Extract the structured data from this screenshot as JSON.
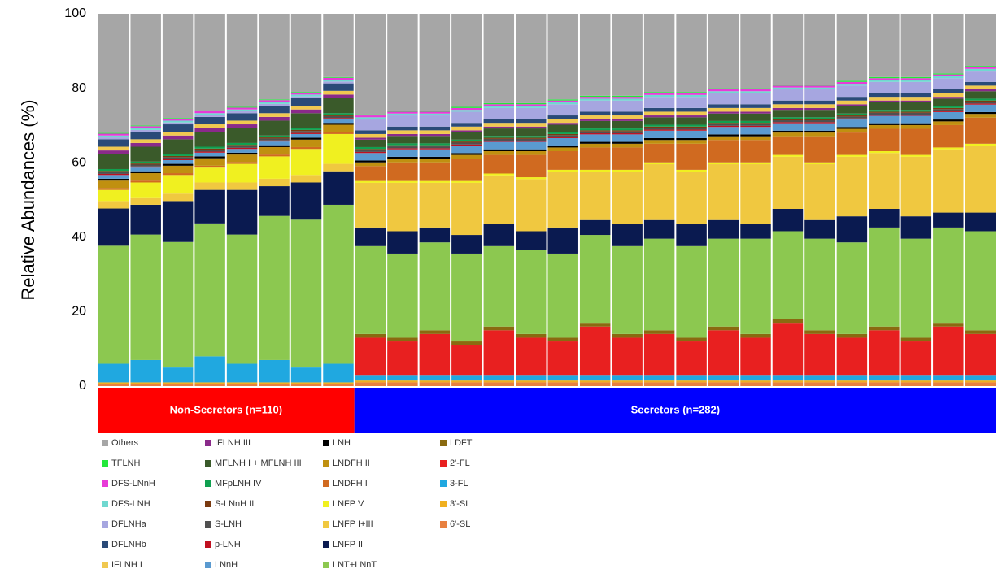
{
  "chart_data": {
    "type": "stacked_bar",
    "ylabel": "Relative Abundances (%)",
    "ylim": [
      0,
      100
    ],
    "yticks": [
      0,
      20,
      40,
      60,
      80,
      100
    ],
    "groups": [
      {
        "label": "Non-Secretors (n=110)",
        "color": "#ff0000",
        "categories": [
          null,
          null,
          null,
          null,
          null,
          null,
          null,
          null
        ]
      },
      {
        "label": "Secretors (n=282)",
        "color": "#0000ff",
        "categories": [
          null,
          null,
          null,
          null,
          null,
          null,
          null,
          null,
          null,
          null,
          null,
          null,
          null,
          null,
          null,
          null,
          null,
          null,
          null,
          null
        ]
      }
    ],
    "series": [
      {
        "name": "Others",
        "color": "#a6a6a6",
        "values": [
          32,
          30,
          28,
          26,
          25,
          23,
          21,
          17,
          27,
          26,
          26,
          25,
          24,
          24,
          23,
          22,
          22,
          21,
          21,
          20,
          20,
          19,
          19,
          18,
          17,
          17,
          16,
          14
        ]
      },
      {
        "name": "TFLNH",
        "color": "#22e83a",
        "values": [
          0.2,
          0.2,
          0.2,
          0.2,
          0.2,
          0.2,
          0.2,
          0.2,
          0.3,
          0.3,
          0.3,
          0.3,
          0.3,
          0.3,
          0.3,
          0.3,
          0.3,
          0.3,
          0.3,
          0.3,
          0.3,
          0.3,
          0.3,
          0.3,
          0.3,
          0.3,
          0.3,
          0.3
        ]
      },
      {
        "name": "DFS-LNnH",
        "color": "#e83ad8",
        "values": [
          0.5,
          0.5,
          0.5,
          0.5,
          0.5,
          0.5,
          0.5,
          0.5,
          0.5,
          0.5,
          0.5,
          0.5,
          0.5,
          0.5,
          0.5,
          0.5,
          0.5,
          0.5,
          0.5,
          0.5,
          0.5,
          0.5,
          0.5,
          0.5,
          0.5,
          0.5,
          0.5,
          0.5
        ]
      },
      {
        "name": "DFS-LNH",
        "color": "#70d8d0",
        "values": [
          0.5,
          0.5,
          0.5,
          0.5,
          0.5,
          0.5,
          0.5,
          0.5,
          0.5,
          0.5,
          0.5,
          0.5,
          0.5,
          0.5,
          0.5,
          0.5,
          0.5,
          0.5,
          0.5,
          0.5,
          0.5,
          0.5,
          0.5,
          0.5,
          0.5,
          0.5,
          0.5,
          0.5
        ]
      },
      {
        "name": "DFLNHa",
        "color": "#a6a6e0",
        "values": [
          0.5,
          0.5,
          0.5,
          0.5,
          0.5,
          0.5,
          0.5,
          0.5,
          3,
          3,
          3,
          3,
          3,
          3,
          3,
          3,
          3,
          3,
          3,
          3,
          3,
          3,
          3,
          3,
          3,
          3,
          3,
          3
        ]
      },
      {
        "name": "DFLNHb",
        "color": "#2a4a78",
        "values": [
          2,
          2,
          2,
          2,
          2,
          2,
          2,
          2,
          1,
          1,
          1,
          1,
          1,
          1,
          1,
          1,
          1,
          1,
          1,
          1,
          1,
          1,
          1,
          1,
          1,
          1,
          1,
          1
        ]
      },
      {
        "name": "IFLNH I",
        "color": "#f0c850",
        "values": [
          1,
          1,
          1,
          1,
          1,
          1,
          1,
          1,
          1,
          1,
          1,
          1,
          1,
          1,
          1,
          1,
          1,
          1,
          1,
          1,
          1,
          1,
          1,
          1,
          1,
          1,
          1,
          1
        ]
      },
      {
        "name": "IFLNH III",
        "color": "#8a2a8a",
        "values": [
          1,
          1,
          1,
          1,
          1,
          1,
          1,
          1,
          0.5,
          0.5,
          0.5,
          0.5,
          0.5,
          0.5,
          0.5,
          0.5,
          0.5,
          0.5,
          0.5,
          0.5,
          0.5,
          0.5,
          0.5,
          0.5,
          0.5,
          0.5,
          0.5,
          0.5
        ]
      },
      {
        "name": "MFLNH I + MFLNH III",
        "color": "#3a5a2a",
        "values": [
          4,
          4,
          4,
          4,
          4,
          4,
          4,
          4,
          2,
          2,
          2,
          2,
          2,
          2,
          2,
          2,
          2,
          2,
          2,
          2,
          2,
          2,
          2,
          2,
          2,
          2,
          2,
          2
        ]
      },
      {
        "name": "MFpLNH IV",
        "color": "#10a050",
        "values": [
          0.5,
          0.5,
          0.5,
          0.5,
          0.5,
          0.5,
          0.5,
          0.5,
          0.5,
          0.5,
          0.5,
          0.5,
          0.5,
          0.5,
          0.5,
          0.5,
          0.5,
          0.5,
          0.5,
          0.5,
          0.5,
          0.5,
          0.5,
          0.5,
          0.5,
          0.5,
          0.5,
          0.5
        ]
      },
      {
        "name": "S-LNnH II",
        "color": "#7a3a10",
        "values": [
          0.3,
          0.3,
          0.3,
          0.3,
          0.3,
          0.3,
          0.3,
          0.3,
          0.3,
          0.3,
          0.3,
          0.3,
          0.3,
          0.3,
          0.3,
          0.3,
          0.3,
          0.3,
          0.3,
          0.3,
          0.3,
          0.3,
          0.3,
          0.3,
          0.3,
          0.3,
          0.3,
          0.3
        ]
      },
      {
        "name": "S-LNH",
        "color": "#505050",
        "values": [
          0.5,
          0.5,
          0.5,
          0.5,
          0.5,
          0.5,
          0.5,
          0.5,
          0.5,
          0.5,
          0.5,
          0.5,
          0.5,
          0.5,
          0.5,
          0.5,
          0.5,
          0.5,
          0.5,
          0.5,
          0.5,
          0.5,
          0.5,
          0.5,
          0.5,
          0.5,
          0.5,
          0.5
        ]
      },
      {
        "name": "p-LNH",
        "color": "#c01020",
        "values": [
          0.3,
          0.3,
          0.3,
          0.3,
          0.3,
          0.3,
          0.3,
          0.3,
          0.3,
          0.3,
          0.3,
          0.3,
          0.3,
          0.3,
          0.3,
          0.3,
          0.3,
          0.3,
          0.3,
          0.3,
          0.3,
          0.3,
          0.3,
          0.3,
          0.3,
          0.3,
          0.3,
          0.3
        ]
      },
      {
        "name": "LNnH",
        "color": "#5a9ad0",
        "values": [
          1,
          1,
          1,
          1,
          1,
          1,
          1,
          1,
          2,
          2,
          2,
          2,
          2,
          2,
          2,
          2,
          2,
          2,
          2,
          2,
          2,
          2,
          2,
          2,
          2,
          2,
          2,
          2
        ]
      },
      {
        "name": "LNH",
        "color": "#000000",
        "values": [
          0.5,
          0.5,
          0.5,
          0.5,
          0.5,
          0.5,
          0.5,
          0.5,
          0.5,
          0.5,
          0.5,
          0.5,
          0.5,
          0.5,
          0.5,
          0.5,
          0.5,
          0.5,
          0.5,
          0.5,
          0.5,
          0.5,
          0.5,
          0.5,
          0.5,
          0.5,
          0.5,
          0.5
        ]
      },
      {
        "name": "LNDFH II",
        "color": "#c09010",
        "values": [
          2,
          2,
          2,
          2,
          2,
          2,
          2,
          2,
          1,
          1,
          1,
          1,
          1,
          1,
          1,
          1,
          1,
          1,
          1,
          1,
          1,
          1,
          1,
          1,
          1,
          1,
          1,
          1
        ]
      },
      {
        "name": "LNDFH I",
        "color": "#d06a20",
        "values": [
          0.5,
          0.5,
          0.5,
          0.5,
          0.5,
          0.5,
          0.5,
          0.5,
          4,
          5,
          5,
          6,
          5,
          6,
          5,
          6,
          6,
          5,
          7,
          6,
          6,
          5,
          7,
          6,
          6,
          7,
          6,
          7
        ]
      },
      {
        "name": "LNFP V",
        "color": "#f0f020",
        "values": [
          3,
          4,
          5,
          4,
          5,
          6,
          7,
          8,
          0.5,
          0.5,
          0.5,
          0.5,
          0.5,
          0.5,
          0.5,
          0.5,
          0.5,
          0.5,
          0.5,
          0.5,
          0.5,
          0.5,
          0.5,
          0.5,
          0.5,
          0.5,
          0.5,
          0.5
        ]
      },
      {
        "name": "LNFP I+III",
        "color": "#f0c840",
        "values": [
          2,
          2,
          2,
          2,
          2,
          2,
          2,
          2,
          12,
          13,
          12,
          14,
          13,
          14,
          15,
          13,
          14,
          15,
          14,
          15,
          16,
          14,
          15,
          16,
          15,
          16,
          17,
          18
        ]
      },
      {
        "name": "LNFP II",
        "color": "#0a1a50",
        "values": [
          10,
          8,
          11,
          9,
          12,
          8,
          10,
          9,
          5,
          6,
          4,
          5,
          6,
          5,
          7,
          4,
          6,
          5,
          6,
          5,
          4,
          6,
          5,
          7,
          5,
          6,
          4,
          5
        ]
      },
      {
        "name": "LNT+LNnT",
        "color": "#8cc850",
        "values": [
          31.7,
          33.7,
          33.7,
          35.7,
          34.7,
          38.7,
          39.7,
          42.7,
          23.6,
          22.6,
          23.6,
          23.6,
          21.6,
          22.6,
          22.6,
          23.6,
          23.6,
          24.6,
          24.6,
          23.6,
          25.6,
          23.6,
          24.6,
          24.6,
          26.6,
          26.6,
          25.6,
          26.6
        ]
      },
      {
        "name": "LDFT",
        "color": "#8a6a10",
        "values": [
          0,
          0,
          0,
          0,
          0,
          0,
          0,
          0,
          1,
          1,
          1,
          1,
          1,
          1,
          1,
          1,
          1,
          1,
          1,
          1,
          1,
          1,
          1,
          1,
          1,
          1,
          1,
          1
        ]
      },
      {
        "name": "2'-FL",
        "color": "#e82020",
        "values": [
          0,
          0,
          0,
          0,
          0,
          0,
          0,
          0,
          10,
          9,
          11,
          8,
          12,
          10,
          9,
          13,
          10,
          11,
          9,
          12,
          10,
          14,
          11,
          10,
          12,
          9,
          13,
          11
        ]
      },
      {
        "name": "3-FL",
        "color": "#20a8e0",
        "values": [
          5,
          6,
          4,
          7,
          5,
          6,
          4,
          5,
          1.5,
          1.5,
          1.5,
          1.5,
          1.5,
          1.5,
          1.5,
          1.5,
          1.5,
          1.5,
          1.5,
          1.5,
          1.5,
          1.5,
          1.5,
          1.5,
          1.5,
          1.5,
          1.5,
          1.5
        ]
      },
      {
        "name": "3'-SL",
        "color": "#f0b020",
        "values": [
          0.5,
          0.5,
          0.5,
          0.5,
          0.5,
          0.5,
          0.5,
          0.5,
          0.5,
          0.5,
          0.5,
          0.5,
          0.5,
          0.5,
          0.5,
          0.5,
          0.5,
          0.5,
          0.5,
          0.5,
          0.5,
          0.5,
          0.5,
          0.5,
          0.5,
          0.5,
          0.5,
          0.5
        ]
      },
      {
        "name": "6'-SL",
        "color": "#e88040",
        "values": [
          0.5,
          0.5,
          0.5,
          0.5,
          0.5,
          0.5,
          0.5,
          0.5,
          1,
          1,
          1,
          1,
          1,
          1,
          1,
          1,
          1,
          1,
          1,
          1,
          1,
          1,
          1,
          1,
          1,
          1,
          1,
          1
        ]
      }
    ]
  }
}
